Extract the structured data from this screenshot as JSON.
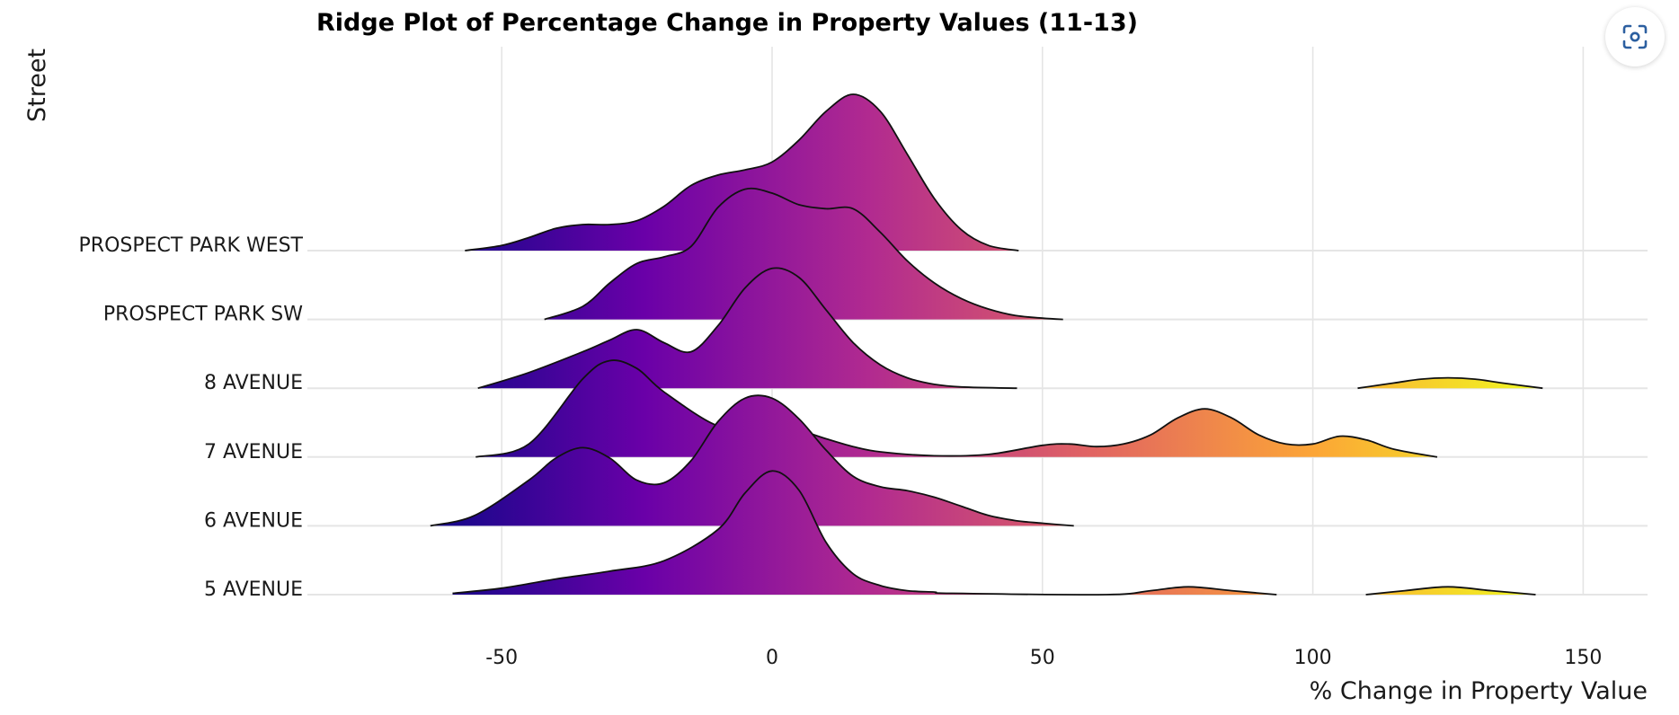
{
  "chart_data": {
    "type": "ridge",
    "title": "Ridge Plot of Percentage Change in Property Values (11-13)",
    "xlabel": "% Change in Property Value",
    "ylabel": "Street",
    "xlim": [
      -86,
      162
    ],
    "xticks": [
      -50,
      0,
      50,
      100,
      150
    ],
    "xtick_labels": [
      "-50",
      "0",
      "50",
      "100",
      "150"
    ],
    "grid": true,
    "colormap": [
      "#0d0887",
      "#6a00a8",
      "#b12a90",
      "#e16462",
      "#fca636",
      "#f0f921"
    ],
    "categories": [
      "5 AVENUE",
      "6 AVENUE",
      "7 AVENUE",
      "8 AVENUE",
      "PROSPECT PARK SW",
      "PROSPECT PARK WEST"
    ],
    "series": [
      {
        "name": "5 AVENUE",
        "x": [
          -59.1,
          -50,
          -40,
          -30,
          -20,
          -10,
          -5,
          0,
          5,
          10,
          15,
          20,
          25,
          30,
          33.3,
          61.8,
          70,
          77,
          85,
          93.3,
          109.8,
          117,
          125,
          133,
          141.2
        ],
        "y": [
          0.01,
          0.05,
          0.12,
          0.18,
          0.26,
          0.5,
          0.78,
          0.95,
          0.8,
          0.4,
          0.16,
          0.07,
          0.03,
          0.02,
          0.01,
          0.0,
          0.03,
          0.06,
          0.03,
          0.0,
          0.0,
          0.03,
          0.06,
          0.03,
          0.0
        ]
      },
      {
        "name": "6 AVENUE",
        "x": [
          -63.2,
          -55,
          -45,
          -40,
          -35,
          -30,
          -25,
          -20,
          -15,
          -10,
          -5,
          0,
          5,
          10,
          15,
          20,
          25,
          30,
          35,
          40,
          45,
          50,
          55.8
        ],
        "y": [
          0.0,
          0.08,
          0.35,
          0.52,
          0.6,
          0.52,
          0.35,
          0.33,
          0.5,
          0.8,
          0.98,
          0.98,
          0.82,
          0.58,
          0.38,
          0.3,
          0.27,
          0.22,
          0.15,
          0.08,
          0.04,
          0.02,
          0.0
        ]
      },
      {
        "name": "7 AVENUE",
        "x": [
          -54.8,
          -45,
          -35,
          -30,
          -25,
          -20,
          -10,
          -5,
          0,
          5,
          10,
          15,
          20,
          30,
          40,
          50,
          55,
          60,
          65,
          70,
          75,
          80,
          85,
          90,
          95,
          100,
          105,
          110,
          115,
          123.0
        ],
        "y": [
          0.0,
          0.1,
          0.6,
          0.74,
          0.68,
          0.5,
          0.24,
          0.31,
          0.28,
          0.21,
          0.14,
          0.08,
          0.04,
          0.01,
          0.02,
          0.09,
          0.1,
          0.08,
          0.1,
          0.17,
          0.3,
          0.37,
          0.3,
          0.17,
          0.1,
          0.1,
          0.16,
          0.13,
          0.06,
          0.0
        ]
      },
      {
        "name": "8 AVENUE",
        "x": [
          -54.4,
          -45,
          -35,
          -30,
          -25,
          -20,
          -15,
          -10,
          -5,
          0,
          5,
          10,
          15,
          20,
          25,
          30,
          35,
          45.3,
          108.3,
          115,
          120,
          125,
          130,
          135,
          142.5
        ],
        "y": [
          0.0,
          0.12,
          0.28,
          0.37,
          0.45,
          0.35,
          0.28,
          0.48,
          0.77,
          0.92,
          0.85,
          0.6,
          0.35,
          0.18,
          0.08,
          0.03,
          0.01,
          0.0,
          0.0,
          0.04,
          0.07,
          0.08,
          0.07,
          0.04,
          0.0
        ]
      },
      {
        "name": "PROSPECT PARK SW",
        "x": [
          -42.1,
          -35,
          -30,
          -25,
          -20,
          -15,
          -10,
          -5,
          0,
          5,
          10,
          15,
          20,
          25,
          30,
          35,
          40,
          45,
          50,
          53.8
        ],
        "y": [
          0.0,
          0.1,
          0.28,
          0.43,
          0.48,
          0.56,
          0.86,
          1.0,
          0.97,
          0.88,
          0.85,
          0.85,
          0.67,
          0.45,
          0.28,
          0.16,
          0.08,
          0.03,
          0.01,
          0.0
        ]
      },
      {
        "name": "PROSPECT PARK WEST",
        "x": [
          -56.8,
          -50,
          -45,
          -40,
          -35,
          -30,
          -25,
          -20,
          -15,
          -10,
          -5,
          0,
          5,
          10,
          15,
          20,
          25,
          30,
          35,
          40,
          45.6
        ],
        "y": [
          0.0,
          0.04,
          0.1,
          0.17,
          0.2,
          0.2,
          0.23,
          0.34,
          0.5,
          0.58,
          0.62,
          0.68,
          0.85,
          1.07,
          1.2,
          1.07,
          0.74,
          0.4,
          0.16,
          0.04,
          0.0
        ]
      }
    ]
  },
  "toolbar": {
    "focus_icon": "focus-scan-icon"
  }
}
